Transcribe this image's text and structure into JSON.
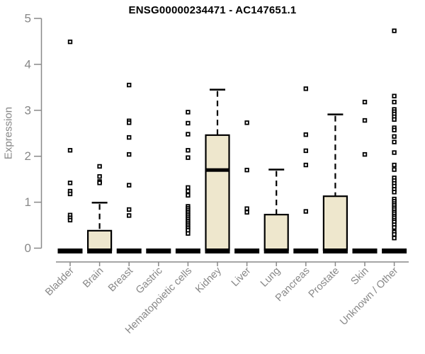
{
  "chart_data": {
    "type": "boxplot",
    "title": "ENSG00000234471 - AC147651.1",
    "ylabel": "Expression",
    "xlabel": "",
    "ylim": [
      0,
      5
    ],
    "yticks": [
      0,
      1,
      2,
      3,
      4,
      5
    ],
    "grid": false,
    "legend": "none",
    "categories": [
      "Bladder",
      "Brain",
      "Breast",
      "Gastric",
      "Hematopoietic cells",
      "Kidney",
      "Liver",
      "Lung",
      "Pancreas",
      "Prostate",
      "Skin",
      "Unknown / Other"
    ],
    "boxes": [
      {
        "category": "Bladder",
        "q1": 0,
        "median": 0,
        "q3": 0,
        "whisker_low": 0,
        "whisker_high": 0,
        "outliers": [
          4.49,
          2.13,
          1.42,
          1.24,
          1.18,
          0.72,
          0.66,
          0.61
        ]
      },
      {
        "category": "Brain",
        "q1": 0,
        "median": 0,
        "q3": 0.38,
        "whisker_low": 0,
        "whisker_high": 0.99,
        "outliers": [
          1.78,
          1.56,
          1.45,
          1.42
        ]
      },
      {
        "category": "Breast",
        "q1": 0,
        "median": 0,
        "q3": 0,
        "whisker_low": 0,
        "whisker_high": 0,
        "outliers": [
          3.55,
          2.77,
          2.73,
          2.41,
          2.04,
          1.37,
          0.84,
          0.71
        ]
      },
      {
        "category": "Gastric",
        "q1": 0,
        "median": 0,
        "q3": 0,
        "whisker_low": 0,
        "whisker_high": 0,
        "outliers": []
      },
      {
        "category": "Hematopoietic cells",
        "q1": 0,
        "median": 0,
        "q3": 0,
        "whisker_low": 0,
        "whisker_high": 0,
        "outliers": [
          2.96,
          2.72,
          2.48,
          2.13,
          1.97,
          1.32,
          1.24,
          1.15,
          0.91,
          0.87,
          0.83,
          0.79,
          0.75,
          0.71,
          0.67,
          0.63,
          0.59,
          0.55,
          0.51,
          0.47,
          0.43,
          0.39,
          0.32
        ]
      },
      {
        "category": "Kidney",
        "q1": 0,
        "median": 1.7,
        "q3": 2.46,
        "whisker_low": 0,
        "whisker_high": 3.45,
        "outliers": []
      },
      {
        "category": "Liver",
        "q1": 0,
        "median": 0,
        "q3": 0,
        "whisker_low": 0,
        "whisker_high": 0,
        "outliers": [
          2.73,
          1.7,
          0.86,
          0.78
        ]
      },
      {
        "category": "Lung",
        "q1": 0,
        "median": 0,
        "q3": 0.73,
        "whisker_low": 0,
        "whisker_high": 1.71,
        "outliers": []
      },
      {
        "category": "Pancreas",
        "q1": 0,
        "median": 0,
        "q3": 0,
        "whisker_low": 0,
        "whisker_high": 0,
        "outliers": [
          3.47,
          2.47,
          2.12,
          1.81,
          0.8
        ]
      },
      {
        "category": "Prostate",
        "q1": 0,
        "median": 0,
        "q3": 1.13,
        "whisker_low": 0,
        "whisker_high": 2.91,
        "outliers": []
      },
      {
        "category": "Skin",
        "q1": 0,
        "median": 0,
        "q3": 0,
        "whisker_low": 0,
        "whisker_high": 0,
        "outliers": [
          3.18,
          2.78,
          2.04
        ]
      },
      {
        "category": "Unknown / Other",
        "q1": 0,
        "median": 0,
        "q3": 0,
        "whisker_low": 0,
        "whisker_high": 0,
        "outliers": [
          4.73,
          3.31,
          3.18,
          3.02,
          2.97,
          2.92,
          2.86,
          2.8,
          2.62,
          2.57,
          2.43,
          2.31,
          2.08,
          1.81,
          1.71,
          1.53,
          1.47,
          1.41,
          1.35,
          1.28,
          1.22,
          1.07,
          1.02,
          0.97,
          0.93,
          0.88,
          0.84,
          0.79,
          0.75,
          0.7,
          0.66,
          0.61,
          0.57,
          0.51,
          0.45,
          0.35,
          0.3,
          0.22
        ]
      }
    ],
    "colors": {
      "background": "#ffffff",
      "box_fill": "#EEE7CD",
      "box_stroke": "#000000",
      "median": "#000000",
      "whisker": "#000000",
      "outlier_fill": "#ffffff",
      "outlier_stroke": "#000000",
      "axis": "#898989",
      "tick_label": "#878787",
      "title": "#000000"
    }
  }
}
